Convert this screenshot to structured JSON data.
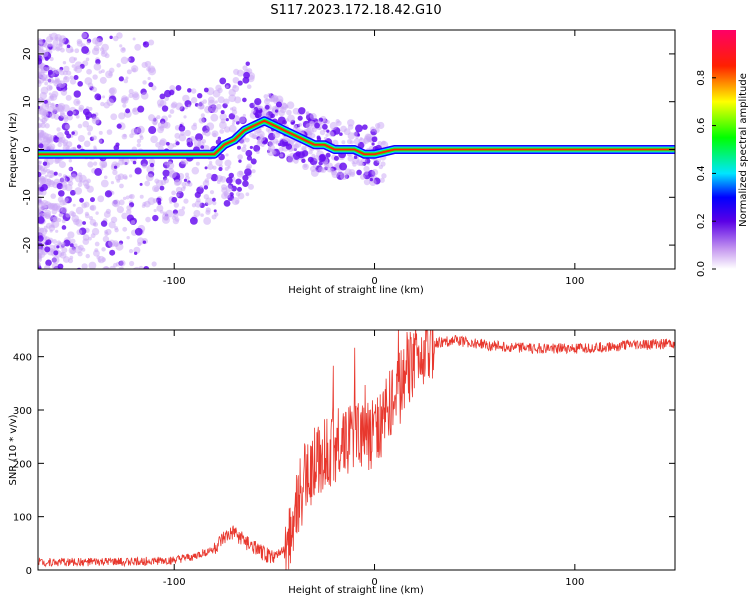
{
  "title": "S117.2023.172.18.42.G10",
  "chart_data": [
    {
      "type": "heatmap",
      "xlabel": "Height of straight line (km)",
      "ylabel": "Frequency (Hz)",
      "xlim": [
        -168,
        150
      ],
      "ylim": [
        -25,
        25
      ],
      "xticks": [
        -100,
        0,
        100
      ],
      "yticks": [
        -20,
        -10,
        0,
        10,
        20
      ],
      "colorbar": {
        "label": "Normalized spectral amplitude",
        "range": [
          0,
          1
        ],
        "ticks": [
          0.0,
          0.2,
          0.4,
          0.6,
          0.8
        ]
      },
      "ridge": {
        "x": [
          -168,
          -150,
          -130,
          -110,
          -100,
          -90,
          -80,
          -75,
          -70,
          -65,
          -60,
          -55,
          -50,
          -45,
          -40,
          -35,
          -30,
          -25,
          -20,
          -15,
          -10,
          -5,
          0,
          10,
          150
        ],
        "y": [
          -1,
          -1,
          -1,
          -1,
          -1,
          -1,
          -1,
          1,
          2,
          4,
          5,
          6,
          5,
          4,
          3,
          2,
          1,
          1,
          0,
          0,
          0,
          -1,
          -1,
          0,
          0
        ]
      }
    },
    {
      "type": "line",
      "xlabel": "Height of straight line (km)",
      "ylabel": "SNR (10 * v/v)",
      "xlim": [
        -168,
        150
      ],
      "ylim": [
        0,
        450
      ],
      "xticks": [
        -100,
        0,
        100
      ],
      "yticks": [
        0,
        100,
        200,
        300,
        400
      ],
      "color": "#e8382e",
      "envelope": {
        "x": [
          -168,
          -130,
          -100,
          -90,
          -80,
          -75,
          -70,
          -65,
          -60,
          -55,
          -50,
          -45,
          -40,
          -35,
          -30,
          -25,
          -20,
          -15,
          -10,
          -5,
          0,
          5,
          10,
          15,
          20,
          25,
          30,
          40,
          60,
          80,
          100,
          120,
          150
        ],
        "y": [
          15,
          15,
          18,
          25,
          40,
          60,
          70,
          55,
          40,
          30,
          25,
          40,
          100,
          170,
          200,
          220,
          230,
          250,
          250,
          260,
          250,
          290,
          320,
          360,
          390,
          410,
          425,
          430,
          420,
          415,
          415,
          420,
          425
        ]
      }
    }
  ]
}
